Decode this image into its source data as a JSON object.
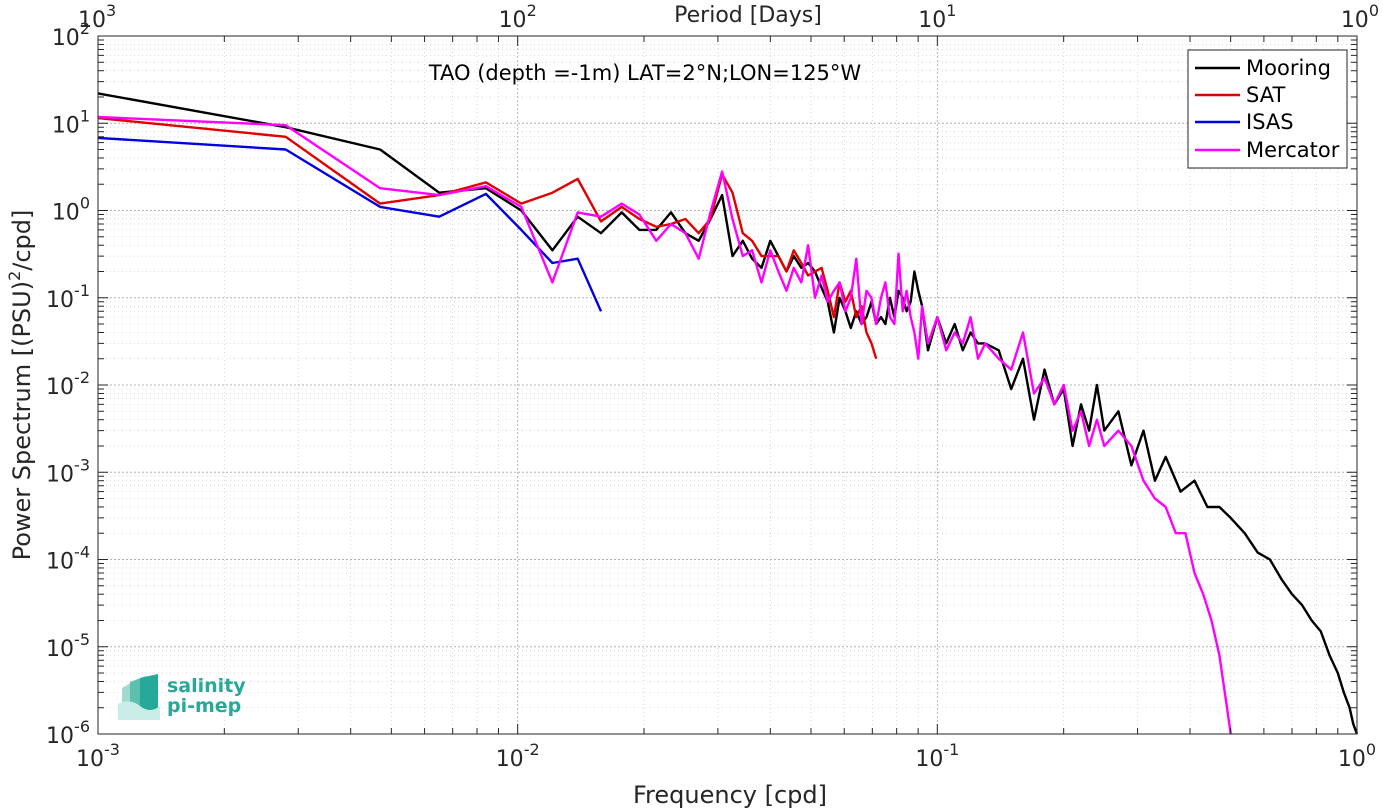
{
  "chart_data": {
    "type": "line",
    "title": "",
    "annotation": "TAO (depth =-1m) LAT=2°N;LON=125°W",
    "xlabel": "Frequency [cpd]",
    "ylabel_main": "Power Spectrum [(PSU)",
    "ylabel_sup": "2",
    "ylabel_tail": "/cpd]",
    "top_xlabel": "Period [Days]",
    "xscale": "log",
    "yscale": "log",
    "xlim": [
      0.001,
      1
    ],
    "ylim": [
      1e-06,
      100
    ],
    "grid": true,
    "legend_position": "top-right",
    "x_ticks": [
      {
        "base": "10",
        "exp": "-3",
        "value": 0.001
      },
      {
        "base": "10",
        "exp": "-2",
        "value": 0.01
      },
      {
        "base": "10",
        "exp": "-1",
        "value": 0.1
      },
      {
        "base": "10",
        "exp": "0",
        "value": 1
      }
    ],
    "top_ticks": [
      {
        "base": "10",
        "exp": "3",
        "freq": 0.001
      },
      {
        "base": "10",
        "exp": "2",
        "freq": 0.01
      },
      {
        "base": "10",
        "exp": "1",
        "freq": 0.1
      },
      {
        "base": "10",
        "exp": "0",
        "freq": 1
      }
    ],
    "y_ticks": [
      {
        "base": "10",
        "exp": "-6",
        "value": 1e-06
      },
      {
        "base": "10",
        "exp": "-5",
        "value": 1e-05
      },
      {
        "base": "10",
        "exp": "-4",
        "value": 0.0001
      },
      {
        "base": "10",
        "exp": "-3",
        "value": 0.001
      },
      {
        "base": "10",
        "exp": "-2",
        "value": 0.01
      },
      {
        "base": "10",
        "exp": "-1",
        "value": 0.1
      },
      {
        "base": "10",
        "exp": "0",
        "value": 1
      },
      {
        "base": "10",
        "exp": "1",
        "value": 10
      },
      {
        "base": "10",
        "exp": "2",
        "value": 100
      }
    ],
    "series": [
      {
        "name": "Mooring",
        "color": "#000000",
        "x": [
          0.001,
          0.0028,
          0.0047,
          0.0065,
          0.0084,
          0.0102,
          0.0121,
          0.0139,
          0.0158,
          0.0177,
          0.0195,
          0.0214,
          0.0232,
          0.0251,
          0.027,
          0.0288,
          0.0307,
          0.0325,
          0.0344,
          0.0362,
          0.0381,
          0.04,
          0.0418,
          0.0437,
          0.0455,
          0.0474,
          0.0492,
          0.0511,
          0.053,
          0.0548,
          0.0567,
          0.0585,
          0.0604,
          0.0622,
          0.0641,
          0.066,
          0.0678,
          0.0697,
          0.0715,
          0.0734,
          0.0752,
          0.0771,
          0.079,
          0.0808,
          0.0827,
          0.0845,
          0.0864,
          0.0882,
          0.0901,
          0.092,
          0.095,
          0.1,
          0.105,
          0.11,
          0.115,
          0.12,
          0.125,
          0.13,
          0.14,
          0.15,
          0.16,
          0.17,
          0.18,
          0.19,
          0.2,
          0.21,
          0.22,
          0.23,
          0.24,
          0.25,
          0.27,
          0.29,
          0.31,
          0.33,
          0.35,
          0.38,
          0.41,
          0.44,
          0.47,
          0.5,
          0.54,
          0.58,
          0.62,
          0.66,
          0.7,
          0.74,
          0.78,
          0.82,
          0.86,
          0.9,
          0.93,
          0.96,
          0.98,
          1.0
        ],
        "y": [
          22,
          9,
          5,
          1.6,
          1.8,
          1.0,
          0.35,
          0.85,
          0.55,
          0.95,
          0.6,
          0.6,
          0.95,
          0.55,
          0.45,
          0.8,
          1.5,
          0.3,
          0.45,
          0.28,
          0.22,
          0.45,
          0.3,
          0.2,
          0.3,
          0.22,
          0.25,
          0.2,
          0.13,
          0.09,
          0.04,
          0.1,
          0.07,
          0.045,
          0.07,
          0.05,
          0.06,
          0.09,
          0.05,
          0.06,
          0.05,
          0.1,
          0.06,
          0.12,
          0.1,
          0.07,
          0.09,
          0.2,
          0.12,
          0.08,
          0.025,
          0.06,
          0.03,
          0.05,
          0.025,
          0.04,
          0.03,
          0.03,
          0.025,
          0.009,
          0.02,
          0.004,
          0.015,
          0.006,
          0.009,
          0.002,
          0.006,
          0.003,
          0.01,
          0.003,
          0.005,
          0.0012,
          0.003,
          0.0008,
          0.0015,
          0.0006,
          0.0008,
          0.0004,
          0.0004,
          0.0003,
          0.0002,
          0.00012,
          0.0001,
          6e-05,
          4e-05,
          3e-05,
          2e-05,
          1.5e-05,
          8e-06,
          5e-06,
          3e-06,
          2e-06,
          1.3e-06,
          1e-06
        ]
      },
      {
        "name": "SAT",
        "color": "#e00000",
        "x": [
          0.001,
          0.0028,
          0.0047,
          0.0065,
          0.0084,
          0.0102,
          0.0121,
          0.0139,
          0.0158,
          0.0177,
          0.0195,
          0.0214,
          0.0232,
          0.0251,
          0.027,
          0.0288,
          0.0307,
          0.0325,
          0.0344,
          0.0362,
          0.0381,
          0.04,
          0.0418,
          0.0437,
          0.0455,
          0.0474,
          0.0492,
          0.0511,
          0.053,
          0.0548,
          0.0567,
          0.0585,
          0.0604,
          0.0622,
          0.0641,
          0.066,
          0.0678,
          0.0697,
          0.0715
        ],
        "y": [
          11.5,
          7,
          1.2,
          1.5,
          2.1,
          1.2,
          1.6,
          2.3,
          0.75,
          1.1,
          0.8,
          0.65,
          0.7,
          0.8,
          0.55,
          0.8,
          2.6,
          1.6,
          0.55,
          0.45,
          0.3,
          0.3,
          0.3,
          0.2,
          0.35,
          0.25,
          0.18,
          0.2,
          0.22,
          0.12,
          0.06,
          0.15,
          0.09,
          0.12,
          0.06,
          0.08,
          0.04,
          0.03,
          0.02
        ]
      },
      {
        "name": "ISAS",
        "color": "#0000e0",
        "x": [
          0.001,
          0.0028,
          0.0047,
          0.0065,
          0.0084,
          0.0102,
          0.0121,
          0.0139,
          0.0158
        ],
        "y": [
          6.8,
          5,
          1.1,
          0.85,
          1.55,
          0.6,
          0.25,
          0.28,
          0.07
        ]
      },
      {
        "name": "Mercator",
        "color": "#ff00ff",
        "x": [
          0.001,
          0.0028,
          0.0047,
          0.0065,
          0.0084,
          0.0102,
          0.0121,
          0.0139,
          0.0158,
          0.0177,
          0.0195,
          0.0214,
          0.0232,
          0.0251,
          0.027,
          0.0288,
          0.0307,
          0.0325,
          0.0344,
          0.0362,
          0.0381,
          0.04,
          0.0418,
          0.0437,
          0.0455,
          0.0474,
          0.0492,
          0.0511,
          0.053,
          0.0548,
          0.0567,
          0.0585,
          0.0604,
          0.0622,
          0.0641,
          0.066,
          0.0678,
          0.0697,
          0.0715,
          0.0734,
          0.0752,
          0.0771,
          0.079,
          0.0808,
          0.0827,
          0.0845,
          0.0864,
          0.0882,
          0.0901,
          0.092,
          0.095,
          0.1,
          0.105,
          0.11,
          0.115,
          0.12,
          0.125,
          0.13,
          0.14,
          0.15,
          0.16,
          0.17,
          0.18,
          0.19,
          0.2,
          0.21,
          0.22,
          0.23,
          0.24,
          0.25,
          0.27,
          0.29,
          0.31,
          0.33,
          0.35,
          0.37,
          0.39,
          0.41,
          0.43,
          0.45,
          0.47,
          0.48,
          0.49,
          0.5
        ],
        "y": [
          11.8,
          9.5,
          1.8,
          1.5,
          1.9,
          1.1,
          0.15,
          0.95,
          0.85,
          1.2,
          0.9,
          0.45,
          0.7,
          0.55,
          0.28,
          0.95,
          2.8,
          0.8,
          0.3,
          0.35,
          0.15,
          0.35,
          0.2,
          0.12,
          0.22,
          0.15,
          0.4,
          0.1,
          0.18,
          0.09,
          0.12,
          0.15,
          0.07,
          0.1,
          0.28,
          0.05,
          0.12,
          0.1,
          0.05,
          0.1,
          0.15,
          0.06,
          0.05,
          0.32,
          0.07,
          0.12,
          0.06,
          0.04,
          0.02,
          0.08,
          0.03,
          0.06,
          0.025,
          0.04,
          0.03,
          0.06,
          0.02,
          0.03,
          0.02,
          0.015,
          0.04,
          0.008,
          0.012,
          0.006,
          0.01,
          0.003,
          0.005,
          0.002,
          0.004,
          0.002,
          0.003,
          0.002,
          0.0008,
          0.0005,
          0.0004,
          0.0002,
          0.0002,
          7e-05,
          4e-05,
          2e-05,
          8e-06,
          4e-06,
          2e-06,
          1e-06
        ]
      }
    ]
  },
  "logo": {
    "line1": "salinity",
    "line2": "pi-mep"
  }
}
